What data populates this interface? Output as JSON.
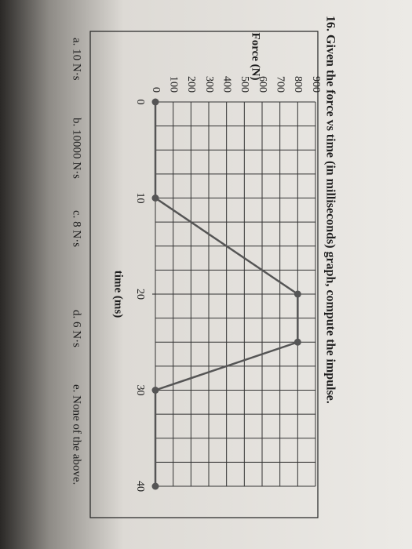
{
  "question": "16. Given the force vs time (in milliseconds) graph, compute the impulse.",
  "options": [
    "a. 10 N·s",
    "b. 10000 N·s",
    "c. 8 N·s",
    "d. 6 N·s",
    "e. None of the above."
  ],
  "chart_data": {
    "type": "line",
    "xlabel": "time (ms)",
    "ylabel": "Force (N)",
    "x": [
      0,
      10,
      20,
      25,
      30,
      40
    ],
    "series": [
      {
        "name": "Force",
        "color": "#555555",
        "values": [
          0,
          0,
          800,
          800,
          0,
          0
        ]
      }
    ],
    "xlim": [
      0,
      40
    ],
    "ylim": [
      0,
      900
    ],
    "xticks": [
      0,
      10,
      20,
      30,
      40
    ],
    "yticks": [
      0,
      100,
      200,
      300,
      400,
      500,
      600,
      700,
      800,
      900
    ],
    "xgrid": [
      0,
      2.5,
      5,
      7.5,
      10,
      12.5,
      15,
      17.5,
      20,
      22.5,
      25,
      27.5,
      30,
      32.5,
      35,
      37.5,
      40
    ],
    "grid": true
  }
}
